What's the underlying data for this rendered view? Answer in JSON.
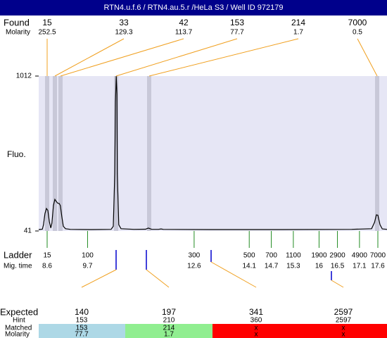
{
  "title": "RTN4.u.f.6 / RTN4.au.5.r /HeLa S3 / Well ID 972179",
  "found": {
    "label": "Found",
    "sublabel": "Molarity",
    "peaks": [
      {
        "size": 15,
        "molarity": 252.5
      },
      {
        "size": 33,
        "molarity": 129.3
      },
      {
        "size": 42,
        "molarity": 113.7
      },
      {
        "size": 153,
        "molarity": 77.7
      },
      {
        "size": 214,
        "molarity": 1.7
      },
      {
        "size": 7000,
        "molarity": 0.5
      }
    ]
  },
  "plot": {
    "ylabel": "Fluo.",
    "ylim": [
      41,
      1012
    ],
    "yticks": [
      1012,
      41
    ],
    "trace": {
      "x": [
        8.37,
        8.47,
        8.5,
        8.54,
        8.58,
        8.62,
        8.66,
        8.7,
        8.73,
        8.77,
        8.81,
        8.85,
        8.89,
        8.93,
        8.96,
        9.0,
        9.04,
        9.1,
        9.23,
        9.81,
        10.34,
        10.4,
        10.44,
        10.46,
        10.48,
        10.5,
        10.51,
        10.55,
        10.61,
        10.96,
        11.28,
        11.32,
        11.36,
        11.4,
        11.45,
        11.63,
        11.7,
        11.76,
        13.06,
        14.98,
        16.89,
        17.43,
        17.51,
        17.56,
        17.6,
        17.66,
        17.72,
        17.85
      ],
      "y": [
        50,
        52,
        80,
        150,
        182,
        170,
        100,
        60,
        90,
        200,
        239,
        225,
        215,
        213,
        200,
        130,
        70,
        55,
        51,
        50,
        51,
        70,
        400,
        850,
        1012,
        900,
        400,
        80,
        55,
        51,
        52,
        56,
        59,
        55,
        51,
        51,
        54,
        51,
        50,
        50,
        51,
        55,
        95,
        142,
        140,
        80,
        54,
        51
      ]
    }
  },
  "ladder": {
    "label": "Ladder",
    "sublabel": "Mig. time",
    "sizes": [
      15,
      100,
      300,
      500,
      700,
      1100,
      1900,
      2900,
      4900,
      7000
    ],
    "times": [
      8.6,
      9.7,
      12.6,
      14.1,
      14.7,
      15.3,
      16,
      16.5,
      17.1,
      17.6
    ]
  },
  "expected": {
    "label": "Expected",
    "hint_label": "Hint",
    "matched_label": "Matched",
    "molarity_label": "Molarity",
    "columns": [
      {
        "expected": 140,
        "hint": 153,
        "matched": 153,
        "molarity": 77.7
      },
      {
        "expected": 197,
        "hint": 210,
        "matched": 214,
        "molarity": 1.7
      },
      {
        "expected": 341,
        "hint": 360,
        "matched": "x",
        "molarity": "x"
      },
      {
        "expected": 2597,
        "hint": 2597,
        "matched": "x",
        "molarity": "x"
      }
    ]
  }
}
